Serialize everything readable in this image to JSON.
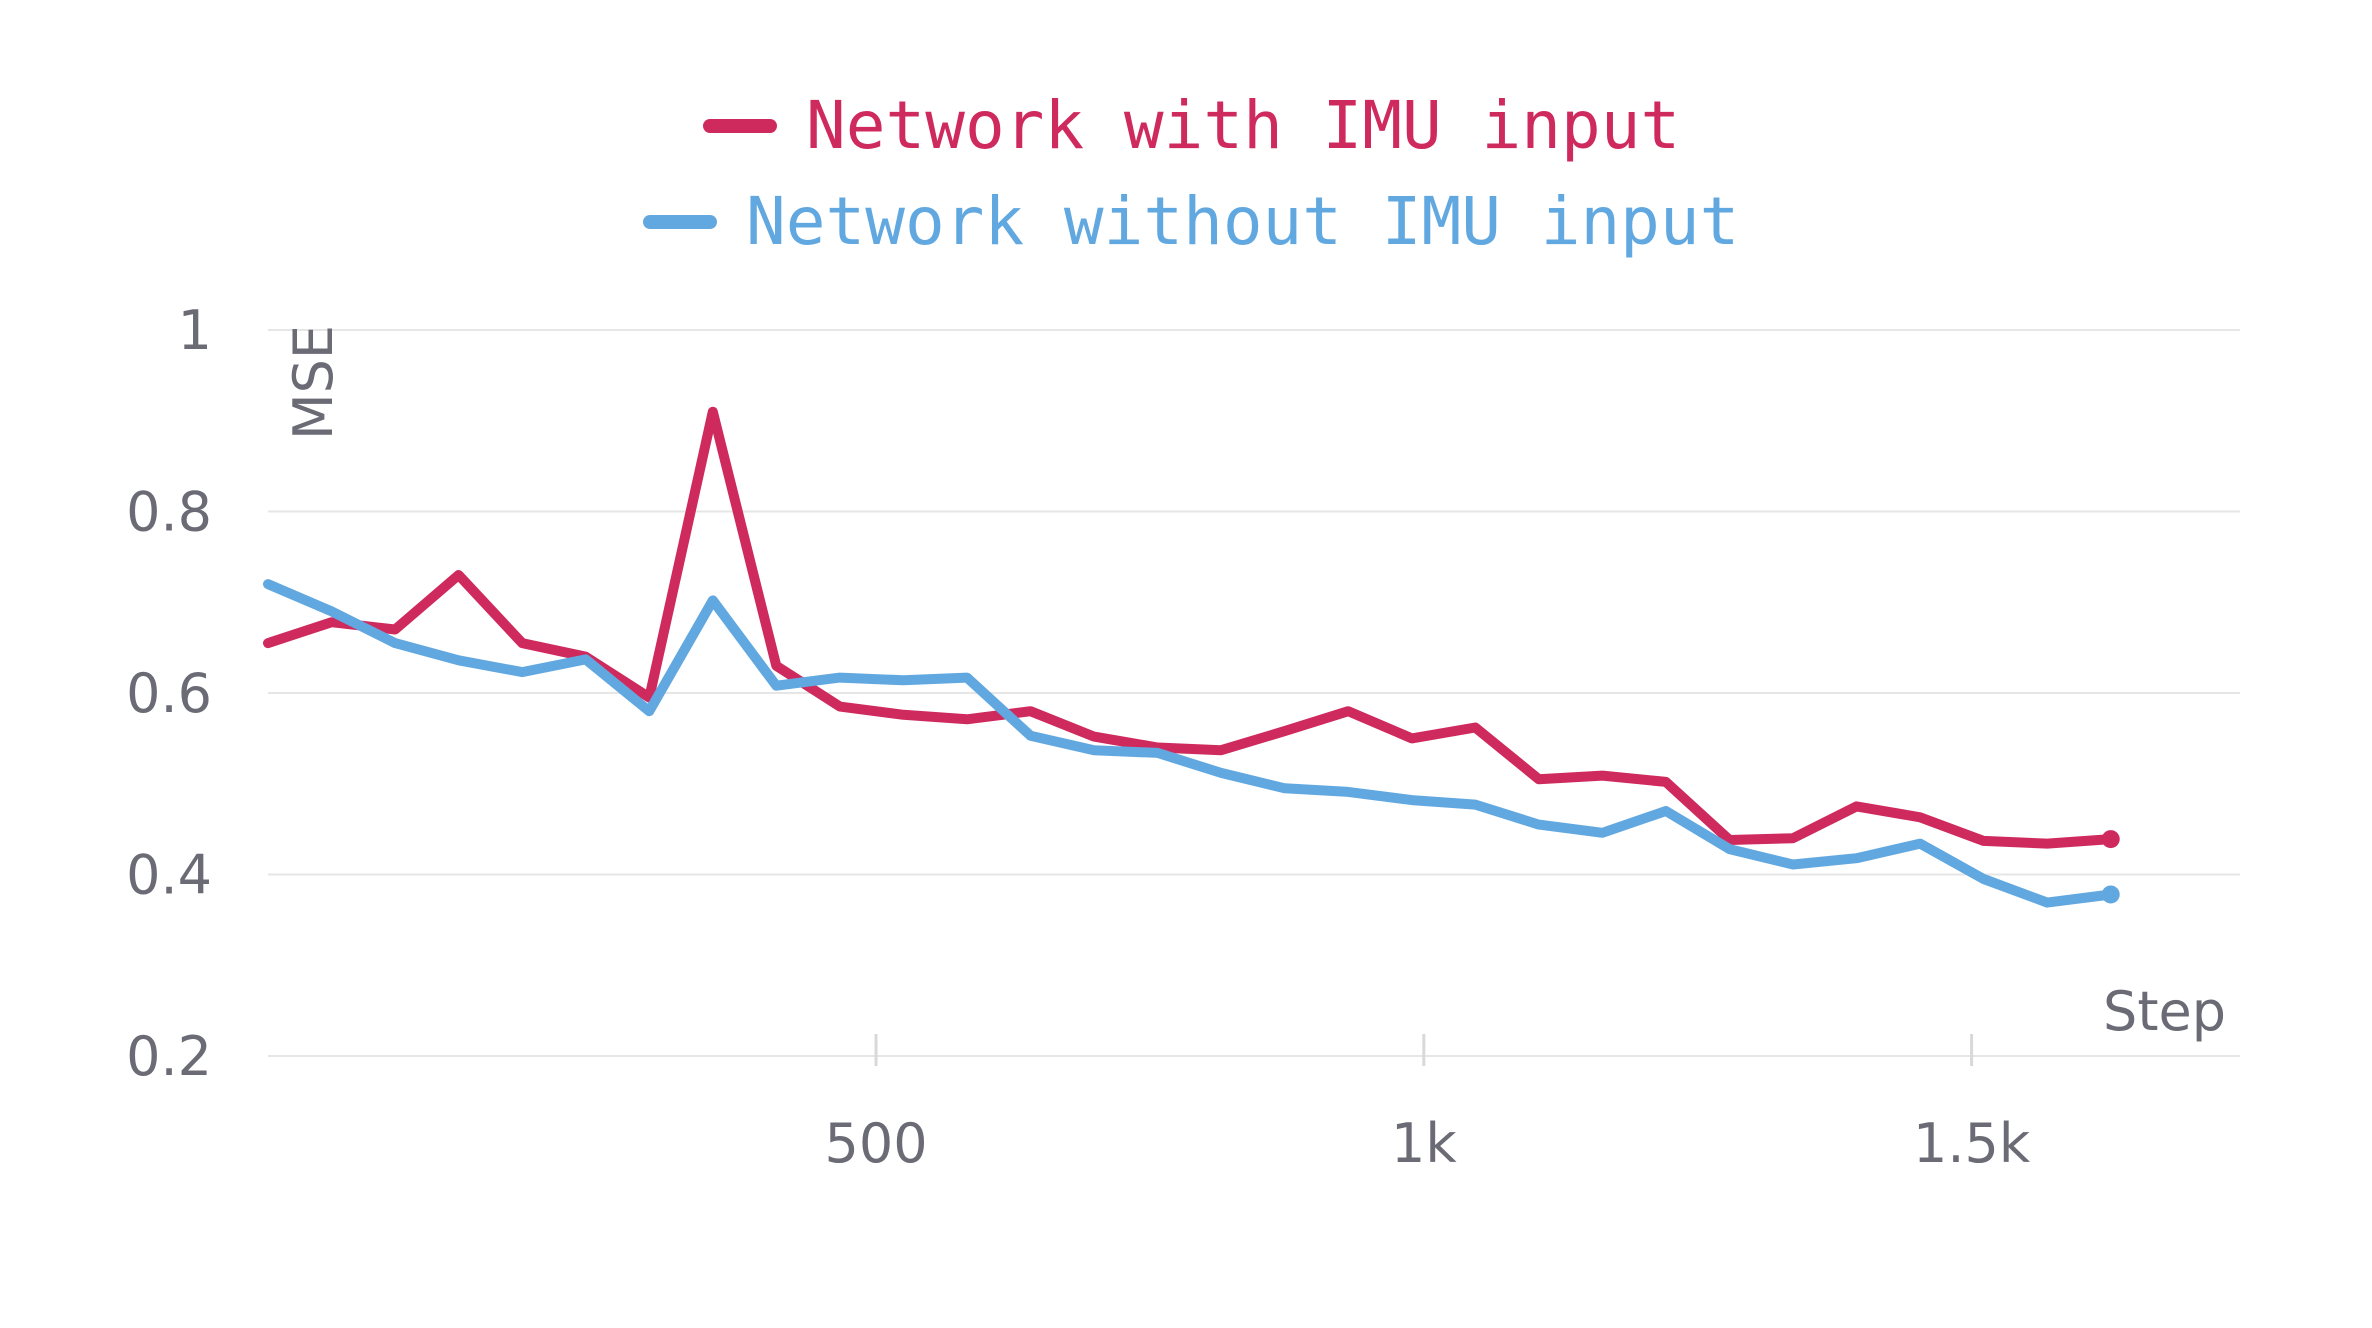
{
  "chart_data": {
    "type": "line",
    "xlabel": "Step",
    "ylabel": "MSE",
    "xlim": [
      -55,
      1745
    ],
    "ylim": [
      0.2,
      1.0
    ],
    "yticks": [
      {
        "value": 0.2,
        "label": "0.2"
      },
      {
        "value": 0.4,
        "label": "0.4"
      },
      {
        "value": 0.6,
        "label": "0.6"
      },
      {
        "value": 0.8,
        "label": "0.8"
      },
      {
        "value": 1.0,
        "label": "1"
      }
    ],
    "xticks": [
      {
        "value": 500,
        "label": "500"
      },
      {
        "value": 1000,
        "label": "1k"
      },
      {
        "value": 1500,
        "label": "1.5k"
      }
    ],
    "grid": true,
    "legend_position": "top",
    "x": [
      -55,
      3,
      61,
      119,
      177,
      235,
      293,
      351,
      409,
      467,
      525,
      583,
      641,
      699,
      757,
      815,
      873,
      931,
      989,
      1047,
      1105,
      1163,
      1221,
      1279,
      1337,
      1395,
      1453,
      1511,
      1569,
      1627,
      1685,
      1743
    ],
    "series": [
      {
        "name": "Network with IMU input",
        "color": "#cf2a5e",
        "values": [
          0.655,
          0.678,
          0.67,
          0.73,
          0.655,
          0.64,
          0.595,
          0.91,
          0.63,
          0.585,
          0.576,
          0.571,
          0.58,
          0.552,
          0.54,
          0.537,
          0.558,
          0.58,
          0.55,
          0.562,
          0.505,
          0.509,
          0.502,
          0.438,
          0.44,
          0.475,
          0.463,
          0.437,
          0.434,
          0.439,
          null,
          null
        ]
      },
      {
        "name": "Network without IMU input",
        "color": "#62a8e0",
        "values": [
          0.72,
          0.69,
          0.655,
          0.636,
          0.623,
          0.637,
          0.58,
          0.702,
          0.608,
          0.617,
          0.614,
          0.617,
          0.553,
          0.537,
          0.534,
          0.512,
          0.495,
          0.491,
          0.482,
          0.477,
          0.455,
          0.446,
          0.47,
          0.428,
          0.411,
          0.418,
          0.434,
          0.395,
          0.369,
          0.378,
          null,
          null
        ]
      }
    ]
  }
}
